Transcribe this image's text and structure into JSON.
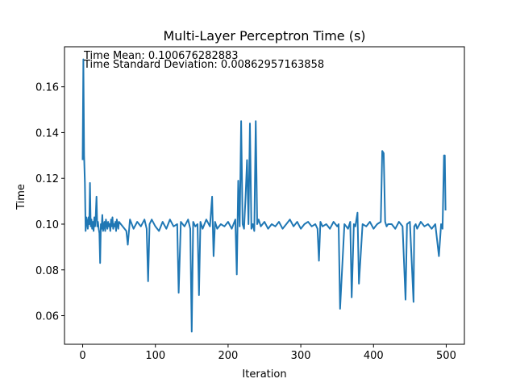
{
  "chart_data": {
    "type": "line",
    "title": "Multi-Layer Perceptron Time (s)",
    "xlabel": "Iteration",
    "ylabel": "Time",
    "xlim": [
      -25,
      525
    ],
    "ylim": [
      0.0475,
      0.1775
    ],
    "xticks": [
      0,
      100,
      200,
      300,
      400,
      500
    ],
    "yticks": [
      0.06,
      0.08,
      0.1,
      0.12,
      0.14,
      0.16
    ],
    "ytick_labels": [
      "0.06",
      "0.08",
      "0.10",
      "0.12",
      "0.14",
      "0.16"
    ],
    "annotations": [
      "Time Mean: 0.100676282883",
      "Time Standard Deviation: 0.00862957163858"
    ],
    "line_color": "#1f77b4",
    "grid": false,
    "legend": "none",
    "series": [
      {
        "x": [
          0,
          1,
          2,
          3,
          4,
          5,
          6,
          7,
          8,
          9,
          10,
          11,
          12,
          13,
          14,
          15,
          16,
          17,
          18,
          19,
          20,
          21,
          22,
          23,
          24,
          25,
          26,
          27,
          28,
          29,
          30,
          31,
          32,
          33,
          34,
          35,
          36,
          37,
          38,
          39,
          40,
          41,
          42,
          43,
          44,
          45,
          46,
          47,
          48,
          49,
          50,
          55,
          60,
          62,
          65,
          70,
          75,
          80,
          85,
          88,
          90,
          92,
          95,
          100,
          105,
          110,
          115,
          120,
          125,
          130,
          132,
          135,
          140,
          145,
          148,
          150,
          152,
          155,
          158,
          160,
          162,
          165,
          170,
          175,
          178,
          180,
          182,
          185,
          190,
          195,
          200,
          205,
          210,
          212,
          214,
          216,
          218,
          220,
          222,
          224,
          226,
          228,
          230,
          232,
          234,
          236,
          238,
          240,
          242,
          245,
          250,
          255,
          260,
          265,
          270,
          275,
          280,
          285,
          290,
          295,
          300,
          305,
          310,
          315,
          320,
          323,
          325,
          327,
          330,
          335,
          340,
          345,
          350,
          352,
          354,
          360,
          365,
          368,
          370,
          373,
          375,
          378,
          380,
          385,
          390,
          395,
          400,
          405,
          410,
          412,
          414,
          416,
          418,
          420,
          425,
          430,
          435,
          440,
          444,
          446,
          450,
          455,
          456,
          458,
          460,
          465,
          470,
          475,
          480,
          485,
          490,
          493,
          495,
          497,
          498,
          499
        ],
        "y": [
          0.128,
          0.172,
          0.13,
          0.118,
          0.097,
          0.103,
          0.101,
          0.098,
          0.103,
          0.1,
          0.118,
          0.099,
          0.102,
          0.098,
          0.101,
          0.097,
          0.103,
          0.099,
          0.104,
          0.112,
          0.099,
          0.101,
          0.098,
          0.096,
          0.083,
          0.1,
          0.098,
          0.104,
          0.097,
          0.099,
          0.101,
          0.097,
          0.102,
          0.1,
          0.098,
          0.101,
          0.099,
          0.1,
          0.097,
          0.102,
          0.099,
          0.103,
          0.098,
          0.1,
          0.099,
          0.101,
          0.097,
          0.102,
          0.1,
          0.098,
          0.101,
          0.099,
          0.097,
          0.091,
          0.102,
          0.098,
          0.101,
          0.099,
          0.102,
          0.098,
          0.075,
          0.1,
          0.102,
          0.099,
          0.097,
          0.101,
          0.098,
          0.102,
          0.099,
          0.1,
          0.07,
          0.101,
          0.099,
          0.102,
          0.098,
          0.053,
          0.101,
          0.099,
          0.1,
          0.069,
          0.101,
          0.098,
          0.102,
          0.099,
          0.112,
          0.086,
          0.101,
          0.098,
          0.1,
          0.099,
          0.101,
          0.098,
          0.102,
          0.078,
          0.119,
          0.099,
          0.145,
          0.1,
          0.098,
          0.112,
          0.128,
          0.1,
          0.144,
          0.098,
          0.1,
          0.097,
          0.145,
          0.1,
          0.102,
          0.099,
          0.101,
          0.098,
          0.1,
          0.099,
          0.101,
          0.098,
          0.1,
          0.102,
          0.099,
          0.101,
          0.098,
          0.1,
          0.101,
          0.099,
          0.1,
          0.098,
          0.084,
          0.101,
          0.099,
          0.1,
          0.098,
          0.101,
          0.099,
          0.1,
          0.063,
          0.1,
          0.098,
          0.101,
          0.068,
          0.1,
          0.099,
          0.105,
          0.074,
          0.1,
          0.099,
          0.101,
          0.098,
          0.1,
          0.101,
          0.132,
          0.131,
          0.101,
          0.099,
          0.1,
          0.1,
          0.098,
          0.101,
          0.099,
          0.067,
          0.1,
          0.101,
          0.066,
          0.099,
          0.1,
          0.098,
          0.101,
          0.099,
          0.1,
          0.098,
          0.1,
          0.086,
          0.1,
          0.098,
          0.13,
          0.13,
          0.106
        ]
      }
    ]
  }
}
